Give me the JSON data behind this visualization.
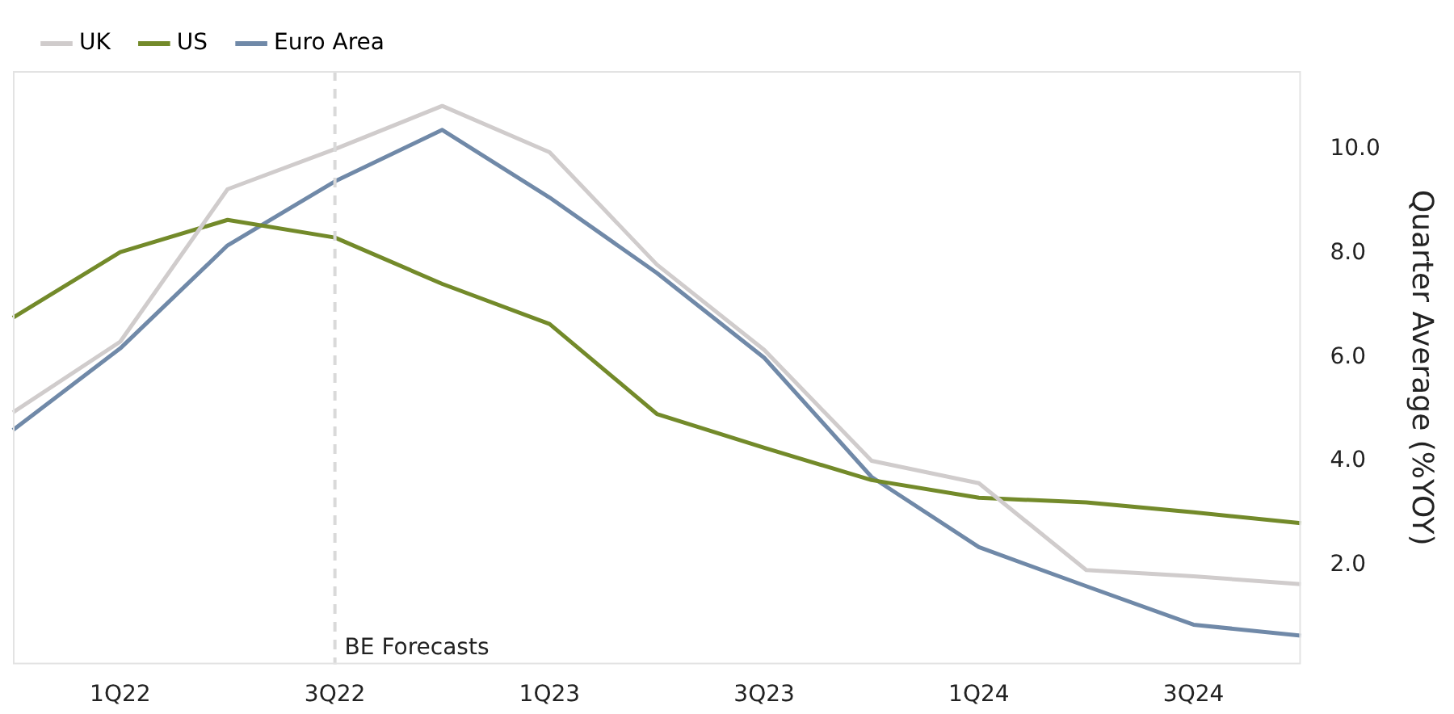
{
  "chart_data": {
    "type": "line",
    "ylabel": "Quarter Average (%YOY)",
    "categories": [
      null,
      "1Q22",
      null,
      "3Q22",
      null,
      "1Q23",
      null,
      "3Q23",
      null,
      "1Q24",
      null,
      "3Q24",
      null
    ],
    "series": [
      {
        "name": "UK",
        "color": "#d0cccc",
        "values": [
          4.94,
          6.3,
          9.23,
          10.0,
          10.83,
          9.94,
          7.78,
          6.14,
          4.01,
          3.58,
          1.91,
          1.79,
          1.64
        ]
      },
      {
        "name": "US",
        "color": "#738a2a",
        "values": [
          6.76,
          8.02,
          8.64,
          8.3,
          7.41,
          6.64,
          4.91,
          4.26,
          3.64,
          3.3,
          3.21,
          3.02,
          2.81
        ]
      },
      {
        "name": "Euro Area",
        "color": "#7089a8",
        "values": [
          4.6,
          6.17,
          8.15,
          9.38,
          10.37,
          9.07,
          7.62,
          5.99,
          3.7,
          2.35,
          1.6,
          0.86,
          0.65
        ]
      }
    ],
    "ylim": [
      0.1,
      11.5
    ],
    "yticks": [
      {
        "value": 2,
        "label": "2.0"
      },
      {
        "value": 4,
        "label": "4.0"
      },
      {
        "value": 6,
        "label": "6.0"
      },
      {
        "value": 8,
        "label": "8.0"
      },
      {
        "value": 10,
        "label": "10.0"
      }
    ],
    "ref_lines": [
      {
        "axis": "x",
        "value": "3Q22",
        "label": "BE Forecasts",
        "color": "#d9d9d9",
        "line_style": "dashed"
      }
    ],
    "grid": false,
    "legend": "top left",
    "marker": "none",
    "line_style": "solid"
  }
}
